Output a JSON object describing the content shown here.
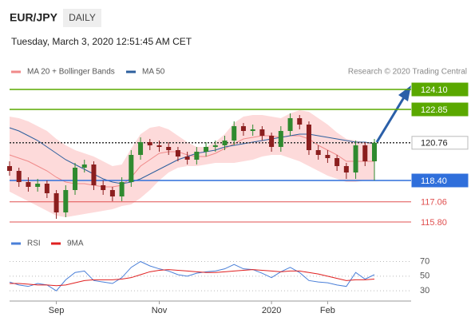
{
  "chart_data": {
    "type": "candlestick",
    "title": "EUR/JPY",
    "timeframe": "DAILY",
    "subtitle": "Tuesday, March 3, 2020 12:51:45 AM CET",
    "source": "Research © 2020 Trading Central",
    "categories": [
      null,
      null,
      null,
      null,
      null,
      "Sep",
      null,
      null,
      null,
      null,
      null,
      null,
      null,
      null,
      null,
      null,
      "Nov",
      null,
      null,
      null,
      null,
      null,
      null,
      null,
      null,
      null,
      null,
      null,
      "2020",
      null,
      null,
      null,
      null,
      null,
      "Feb",
      null,
      null,
      null,
      null,
      null
    ],
    "open": [
      119.3,
      119.0,
      118.3,
      118.0,
      118.2,
      117.6,
      116.4,
      117.8,
      119.2,
      119.4,
      118.1,
      117.8,
      117.4,
      118.3,
      120.0,
      120.8,
      120.6,
      120.5,
      120.3,
      119.9,
      119.7,
      120.2,
      120.5,
      120.6,
      120.9,
      121.8,
      121.5,
      121.6,
      121.2,
      120.5,
      121.5,
      122.3,
      121.9,
      120.3,
      120.0,
      119.8,
      119.3,
      118.9,
      120.6,
      119.6
    ],
    "high": [
      119.6,
      119.2,
      118.6,
      118.5,
      118.4,
      117.8,
      118.1,
      119.5,
      119.7,
      119.6,
      118.4,
      118.0,
      118.6,
      120.3,
      121.1,
      121.0,
      120.9,
      120.8,
      120.5,
      120.2,
      120.5,
      120.8,
      120.9,
      121.2,
      122.1,
      122.0,
      121.9,
      121.8,
      121.4,
      121.8,
      122.6,
      122.5,
      122.1,
      120.6,
      120.3,
      120.0,
      119.5,
      120.9,
      120.8,
      121.0
    ],
    "low": [
      118.7,
      118.0,
      117.7,
      117.7,
      117.3,
      116.0,
      116.1,
      117.5,
      118.9,
      117.8,
      117.5,
      117.1,
      117.1,
      118.0,
      119.7,
      120.3,
      120.2,
      120.0,
      119.6,
      119.4,
      119.4,
      119.9,
      120.2,
      120.3,
      120.6,
      121.2,
      121.2,
      120.9,
      120.2,
      120.2,
      121.2,
      121.6,
      120.0,
      119.7,
      119.5,
      119.0,
      118.5,
      118.5,
      119.3,
      118.4
    ],
    "close": [
      119.0,
      118.3,
      118.0,
      118.2,
      117.6,
      116.4,
      117.8,
      119.2,
      119.4,
      118.1,
      117.8,
      117.4,
      118.3,
      120.0,
      120.8,
      120.6,
      120.5,
      120.3,
      119.9,
      119.7,
      120.2,
      120.5,
      120.6,
      120.9,
      121.8,
      121.5,
      121.6,
      121.2,
      120.5,
      121.5,
      122.3,
      121.9,
      120.3,
      120.0,
      119.8,
      119.3,
      118.9,
      120.6,
      119.6,
      120.76
    ],
    "up_color": "#2f8a2f",
    "down_color": "#8b1e1e",
    "ylim": [
      115.2,
      124.7
    ],
    "series": [
      {
        "name": "MA 20 + Bollinger Bands",
        "color": "#f08a8a",
        "band_color": "#fddada",
        "values": [
          120.0,
          119.8,
          119.6,
          119.3,
          119.0,
          118.6,
          118.3,
          118.2,
          118.2,
          118.1,
          118.0,
          118.0,
          118.1,
          118.6,
          119.3,
          119.7,
          120.1,
          120.2,
          120.2,
          120.0,
          119.9,
          119.9,
          120.1,
          120.4,
          120.7,
          121.0,
          121.1,
          121.2,
          121.2,
          121.1,
          121.2,
          121.2,
          121.0,
          120.6,
          120.3,
          120.0,
          119.6,
          119.6,
          119.6,
          119.6
        ],
        "upper": [
          122.4,
          122.3,
          122.1,
          121.8,
          121.5,
          121.0,
          120.6,
          120.3,
          120.1,
          119.9,
          119.6,
          119.3,
          119.4,
          120.4,
          121.3,
          121.7,
          121.8,
          121.6,
          121.2,
          120.8,
          120.5,
          120.5,
          120.8,
          121.3,
          122.0,
          122.4,
          122.5,
          122.5,
          122.4,
          122.3,
          122.6,
          122.8,
          122.7,
          122.3,
          121.9,
          121.4,
          121.0,
          120.9,
          120.8,
          120.8
        ],
        "lower": [
          117.7,
          117.4,
          117.1,
          116.8,
          116.5,
          116.2,
          116.1,
          116.2,
          116.3,
          116.4,
          116.5,
          116.6,
          116.8,
          116.9,
          117.3,
          117.8,
          118.4,
          118.9,
          119.2,
          119.3,
          119.3,
          119.4,
          119.5,
          119.5,
          119.5,
          119.6,
          119.7,
          119.9,
          120.0,
          120.0,
          119.8,
          119.6,
          119.3,
          119.0,
          118.7,
          118.5,
          118.3,
          118.3,
          118.4,
          118.4
        ]
      },
      {
        "name": "MA 50",
        "color": "#2d5f9e",
        "values": [
          121.7,
          121.5,
          121.2,
          120.9,
          120.5,
          120.1,
          119.7,
          119.4,
          119.1,
          118.8,
          118.5,
          118.3,
          118.2,
          118.3,
          118.5,
          118.8,
          119.1,
          119.4,
          119.7,
          119.9,
          120.1,
          120.2,
          120.3,
          120.5,
          120.6,
          120.7,
          120.8,
          120.9,
          121.0,
          121.1,
          121.2,
          121.3,
          121.3,
          121.2,
          121.1,
          121.0,
          120.9,
          120.8,
          120.8,
          120.7
        ]
      }
    ],
    "levels": [
      {
        "value": 124.1,
        "label": "124.10",
        "color": "#5aa800",
        "style": "solid",
        "boxed": true
      },
      {
        "value": 122.85,
        "label": "122.85",
        "color": "#5aa800",
        "style": "solid",
        "boxed": true
      },
      {
        "value": 120.76,
        "label": "120.76",
        "color": "#333333",
        "style": "dotted",
        "boxed": true
      },
      {
        "value": 118.4,
        "label": "118.40",
        "color": "#2f6fdb",
        "style": "solid",
        "boxed": true
      },
      {
        "value": 117.06,
        "label": "117.06",
        "color": "#e05050",
        "style": "solid",
        "boxed": false
      },
      {
        "value": 115.8,
        "label": "115.80",
        "color": "#e05050",
        "style": "solid",
        "boxed": false
      }
    ],
    "rsi": {
      "ylim": [
        16,
        76
      ],
      "yticks": [
        70,
        50,
        30
      ],
      "grid": true,
      "series": [
        {
          "name": "RSI",
          "color": "#4a7fd8",
          "values": [
            42,
            38,
            36,
            40,
            38,
            30,
            45,
            55,
            57,
            44,
            42,
            40,
            48,
            62,
            70,
            64,
            60,
            57,
            52,
            50,
            54,
            56,
            57,
            60,
            66,
            60,
            59,
            54,
            48,
            56,
            62,
            55,
            44,
            42,
            41,
            38,
            36,
            55,
            46,
            52
          ]
        },
        {
          "name": "9MA",
          "color": "#e02020",
          "values": [
            40,
            40,
            39,
            38,
            38,
            37,
            38,
            41,
            44,
            45,
            45,
            45,
            46,
            48,
            52,
            56,
            58,
            59,
            58,
            57,
            56,
            55,
            55,
            56,
            57,
            58,
            59,
            58,
            57,
            56,
            57,
            57,
            55,
            53,
            50,
            47,
            44,
            45,
            45,
            46
          ]
        }
      ]
    }
  }
}
